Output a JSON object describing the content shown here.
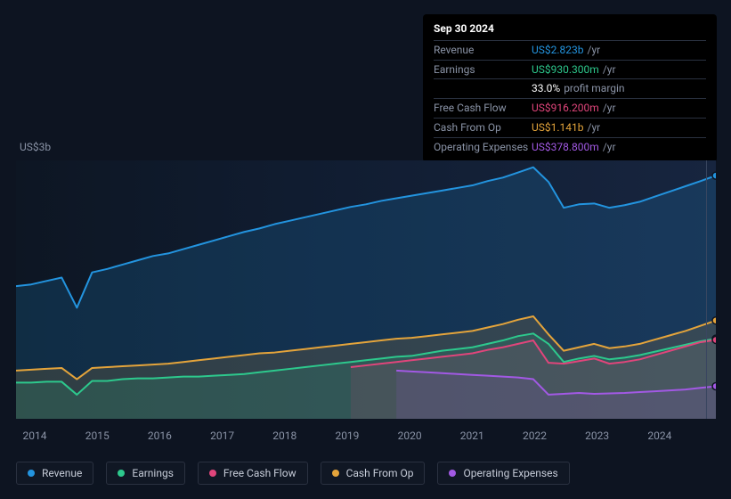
{
  "chart": {
    "type": "area",
    "background_color": "#0d1421",
    "plot_gradient": [
      "#0e1b33",
      "#14223d"
    ],
    "grid_color": "#2a3140",
    "ylabel_top": "US$3b",
    "ylabel_bottom": "US$0",
    "ylim": [
      0,
      3000000000
    ],
    "xlim": [
      2013.7,
      2024.9
    ],
    "xtick_labels": [
      "2014",
      "2015",
      "2016",
      "2017",
      "2018",
      "2019",
      "2020",
      "2021",
      "2022",
      "2023",
      "2024"
    ],
    "xtick_positions": [
      2014,
      2015,
      2016,
      2017,
      2018,
      2019,
      2020,
      2021,
      2022,
      2023,
      2024
    ],
    "vline_at": 2024.75,
    "vline_color": "#3a4660",
    "series": [
      {
        "name": "Revenue",
        "color": "#2394df",
        "fill_opacity": 0.18,
        "line_width": 2,
        "y": [
          1540,
          1560,
          1600,
          1640,
          1290,
          1700,
          1740,
          1790,
          1840,
          1890,
          1920,
          1970,
          2020,
          2070,
          2120,
          2170,
          2210,
          2260,
          2300,
          2340,
          2380,
          2420,
          2460,
          2490,
          2530,
          2560,
          2590,
          2620,
          2650,
          2680,
          2710,
          2760,
          2800,
          2860,
          2920,
          2750,
          2450,
          2490,
          2500,
          2450,
          2480,
          2520,
          2580,
          2640,
          2700,
          2760,
          2823
        ],
        "dot_color": "#2394df"
      },
      {
        "name": "Earnings",
        "color": "#2dc98d",
        "fill_opacity": 0.15,
        "line_width": 2,
        "y": [
          420,
          420,
          430,
          430,
          280,
          440,
          440,
          460,
          470,
          470,
          480,
          490,
          490,
          500,
          510,
          520,
          540,
          560,
          580,
          600,
          620,
          640,
          660,
          680,
          700,
          720,
          730,
          760,
          790,
          810,
          830,
          870,
          910,
          960,
          990,
          870,
          660,
          700,
          730,
          690,
          710,
          740,
          780,
          820,
          860,
          900,
          930
        ],
        "dot_color": "#2dc98d"
      },
      {
        "name": "Free Cash Flow",
        "color": "#e0457b",
        "fill_opacity": 0.12,
        "line_width": 2,
        "start_index": 22,
        "y": [
          600,
          620,
          640,
          660,
          680,
          700,
          720,
          740,
          760,
          800,
          830,
          870,
          910,
          650,
          640,
          670,
          700,
          640,
          660,
          690,
          740,
          790,
          840,
          890,
          916
        ],
        "dot_color": "#e0457b"
      },
      {
        "name": "Cash From Op",
        "color": "#e4a43b",
        "fill_opacity": 0.15,
        "line_width": 2,
        "y": [
          560,
          570,
          580,
          590,
          460,
          590,
          600,
          610,
          620,
          630,
          640,
          660,
          680,
          700,
          720,
          740,
          760,
          770,
          790,
          810,
          830,
          850,
          870,
          890,
          910,
          930,
          940,
          960,
          980,
          1000,
          1020,
          1060,
          1100,
          1150,
          1190,
          980,
          790,
          830,
          870,
          820,
          840,
          870,
          920,
          970,
          1020,
          1080,
          1141
        ],
        "dot_color": "#e4a43b"
      },
      {
        "name": "Operating Expenses",
        "color": "#a259e4",
        "fill_opacity": 0.12,
        "line_width": 2,
        "start_index": 25,
        "y": [
          560,
          550,
          540,
          530,
          520,
          510,
          500,
          490,
          480,
          460,
          280,
          290,
          300,
          290,
          295,
          300,
          310,
          320,
          330,
          340,
          360,
          378
        ],
        "dot_color": "#a259e4"
      }
    ]
  },
  "tooltip": {
    "date": "Sep 30 2024",
    "rows": [
      {
        "label": "Revenue",
        "value": "US$2.823b",
        "suffix": "/yr",
        "color": "#2394df"
      },
      {
        "label": "Earnings",
        "value": "US$930.300m",
        "suffix": "/yr",
        "color": "#2dc98d"
      },
      {
        "label": "",
        "value": "33.0%",
        "suffix": "profit margin",
        "color": "#ffffff"
      },
      {
        "label": "Free Cash Flow",
        "value": "US$916.200m",
        "suffix": "/yr",
        "color": "#e0457b"
      },
      {
        "label": "Cash From Op",
        "value": "US$1.141b",
        "suffix": "/yr",
        "color": "#e4a43b"
      },
      {
        "label": "Operating Expenses",
        "value": "US$378.800m",
        "suffix": "/yr",
        "color": "#a259e4"
      }
    ]
  },
  "legend": {
    "items": [
      {
        "label": "Revenue",
        "color": "#2394df"
      },
      {
        "label": "Earnings",
        "color": "#2dc98d"
      },
      {
        "label": "Free Cash Flow",
        "color": "#e0457b"
      },
      {
        "label": "Cash From Op",
        "color": "#e4a43b"
      },
      {
        "label": "Operating Expenses",
        "color": "#a259e4"
      }
    ]
  }
}
